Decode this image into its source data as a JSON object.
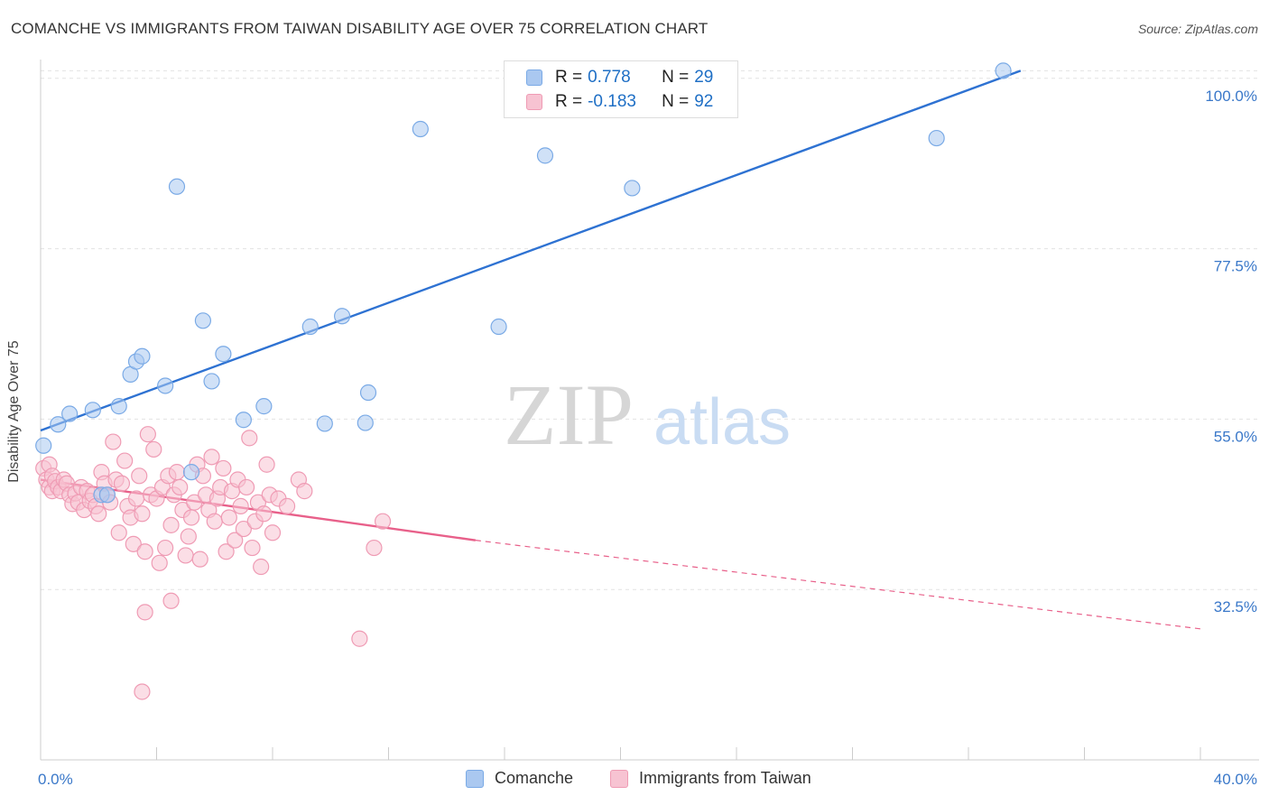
{
  "title": "COMANCHE VS IMMIGRANTS FROM TAIWAN DISABILITY AGE OVER 75 CORRELATION CHART",
  "source": "Source: ZipAtlas.com",
  "watermark": {
    "zip": "ZIP",
    "atlas": "atlas"
  },
  "legend_top": [
    {
      "r_label": "R =",
      "r_value": "0.778",
      "n_label": "N =",
      "n_value": "29",
      "color": "#aac8f0",
      "border": "#7aaae6"
    },
    {
      "r_label": "R =",
      "r_value": "-0.183",
      "n_label": "N =",
      "n_value": "92",
      "color": "#f7c3d2",
      "border": "#ef9bb4"
    }
  ],
  "legend_bottom": [
    {
      "label": "Comanche",
      "color": "#aac8f0",
      "border": "#7aaae6"
    },
    {
      "label": "Immigrants from Taiwan",
      "color": "#f7c3d2",
      "border": "#ef9bb4"
    }
  ],
  "chart_data": {
    "type": "scatter",
    "title": "COMANCHE VS IMMIGRANTS FROM TAIWAN DISABILITY AGE OVER 75 CORRELATION CHART",
    "xlabel": "",
    "ylabel": "Disability Age Over 75",
    "xlim": [
      0,
      40
    ],
    "ylim": [
      10,
      102
    ],
    "x_tick_labels": [
      "0.0%",
      "40.0%"
    ],
    "y_ticks": [
      32.5,
      55.0,
      77.5,
      100.0
    ],
    "y_tick_labels": [
      "32.5%",
      "55.0%",
      "77.5%",
      "100.0%"
    ],
    "grid": true,
    "series": [
      {
        "name": "Comanche",
        "color": "#7aaae6",
        "fill": "#aac8f0",
        "line_color": "#2e72d2",
        "trend": {
          "x0": 0,
          "y0": 53.5,
          "x1": 33.8,
          "y1": 101.0,
          "dashed_to": null
        },
        "points": [
          [
            0.1,
            51.5
          ],
          [
            0.6,
            54.3
          ],
          [
            1.0,
            55.7
          ],
          [
            1.8,
            56.2
          ],
          [
            2.7,
            56.7
          ],
          [
            3.1,
            60.9
          ],
          [
            3.3,
            62.6
          ],
          [
            3.5,
            63.3
          ],
          [
            4.3,
            59.4
          ],
          [
            4.7,
            85.7
          ],
          [
            5.2,
            48.0
          ],
          [
            5.6,
            68.0
          ],
          [
            5.9,
            60.0
          ],
          [
            6.3,
            63.6
          ],
          [
            7.0,
            54.9
          ],
          [
            7.7,
            56.7
          ],
          [
            9.3,
            67.2
          ],
          [
            9.8,
            54.4
          ],
          [
            10.4,
            68.6
          ],
          [
            11.2,
            54.5
          ],
          [
            11.3,
            58.5
          ],
          [
            13.1,
            93.3
          ],
          [
            15.8,
            67.2
          ],
          [
            17.4,
            89.8
          ],
          [
            20.4,
            85.5
          ],
          [
            30.9,
            92.1
          ],
          [
            33.2,
            101.0
          ],
          [
            2.1,
            45.0
          ],
          [
            2.3,
            45.0
          ]
        ]
      },
      {
        "name": "Immigrants from Taiwan",
        "color": "#ef9bb4",
        "fill": "#f7c3d2",
        "line_color": "#e8608a",
        "trend": {
          "x0": 0,
          "y0": 47.0,
          "x1": 15.0,
          "y1": 39.0,
          "dashed_to": {
            "x": 40,
            "y": 27.3
          }
        },
        "points": [
          [
            0.1,
            48.5
          ],
          [
            0.2,
            47.0
          ],
          [
            0.3,
            49.0
          ],
          [
            0.3,
            46.0
          ],
          [
            0.4,
            47.5
          ],
          [
            0.4,
            45.5
          ],
          [
            0.5,
            46.8
          ],
          [
            0.6,
            46.0
          ],
          [
            0.7,
            45.5
          ],
          [
            0.8,
            47.0
          ],
          [
            0.9,
            46.5
          ],
          [
            1.0,
            45.0
          ],
          [
            1.1,
            43.8
          ],
          [
            1.2,
            45.2
          ],
          [
            1.3,
            44.0
          ],
          [
            1.4,
            46.0
          ],
          [
            1.5,
            43.0
          ],
          [
            1.6,
            45.5
          ],
          [
            1.7,
            44.2
          ],
          [
            1.8,
            45.0
          ],
          [
            1.9,
            43.5
          ],
          [
            2.0,
            42.5
          ],
          [
            2.1,
            48.0
          ],
          [
            2.2,
            46.5
          ],
          [
            2.3,
            45.0
          ],
          [
            2.4,
            44.0
          ],
          [
            2.5,
            52.0
          ],
          [
            2.6,
            47.0
          ],
          [
            2.7,
            40.0
          ],
          [
            2.8,
            46.5
          ],
          [
            2.9,
            49.5
          ],
          [
            3.0,
            43.5
          ],
          [
            3.1,
            42.0
          ],
          [
            3.2,
            38.5
          ],
          [
            3.3,
            44.5
          ],
          [
            3.4,
            47.5
          ],
          [
            3.5,
            42.5
          ],
          [
            3.6,
            37.5
          ],
          [
            3.7,
            53.0
          ],
          [
            3.8,
            45.0
          ],
          [
            3.9,
            51.0
          ],
          [
            4.0,
            44.5
          ],
          [
            4.1,
            36.0
          ],
          [
            4.2,
            46.0
          ],
          [
            4.3,
            38.0
          ],
          [
            4.4,
            47.5
          ],
          [
            4.5,
            41.0
          ],
          [
            4.6,
            45.0
          ],
          [
            4.7,
            48.0
          ],
          [
            4.8,
            46.0
          ],
          [
            4.9,
            43.0
          ],
          [
            5.0,
            37.0
          ],
          [
            5.1,
            39.5
          ],
          [
            5.2,
            42.0
          ],
          [
            5.3,
            44.0
          ],
          [
            5.4,
            49.0
          ],
          [
            5.5,
            36.5
          ],
          [
            5.6,
            47.5
          ],
          [
            5.7,
            45.0
          ],
          [
            5.8,
            43.0
          ],
          [
            5.9,
            50.0
          ],
          [
            6.0,
            41.5
          ],
          [
            6.1,
            44.5
          ],
          [
            6.2,
            46.0
          ],
          [
            6.3,
            48.5
          ],
          [
            6.4,
            37.5
          ],
          [
            6.5,
            42.0
          ],
          [
            6.6,
            45.5
          ],
          [
            6.7,
            39.0
          ],
          [
            6.8,
            47.0
          ],
          [
            6.9,
            43.5
          ],
          [
            7.0,
            40.5
          ],
          [
            7.1,
            46.0
          ],
          [
            7.2,
            52.5
          ],
          [
            7.3,
            38.0
          ],
          [
            7.4,
            41.5
          ],
          [
            7.5,
            44.0
          ],
          [
            7.6,
            35.5
          ],
          [
            7.7,
            42.5
          ],
          [
            7.8,
            49.0
          ],
          [
            7.9,
            45.0
          ],
          [
            8.0,
            40.0
          ],
          [
            8.2,
            44.5
          ],
          [
            8.5,
            43.5
          ],
          [
            8.9,
            47.0
          ],
          [
            9.1,
            45.5
          ],
          [
            11.0,
            26.0
          ],
          [
            11.5,
            38.0
          ],
          [
            11.8,
            41.5
          ],
          [
            3.5,
            19.0
          ],
          [
            3.6,
            29.5
          ],
          [
            4.5,
            31.0
          ]
        ]
      }
    ]
  }
}
